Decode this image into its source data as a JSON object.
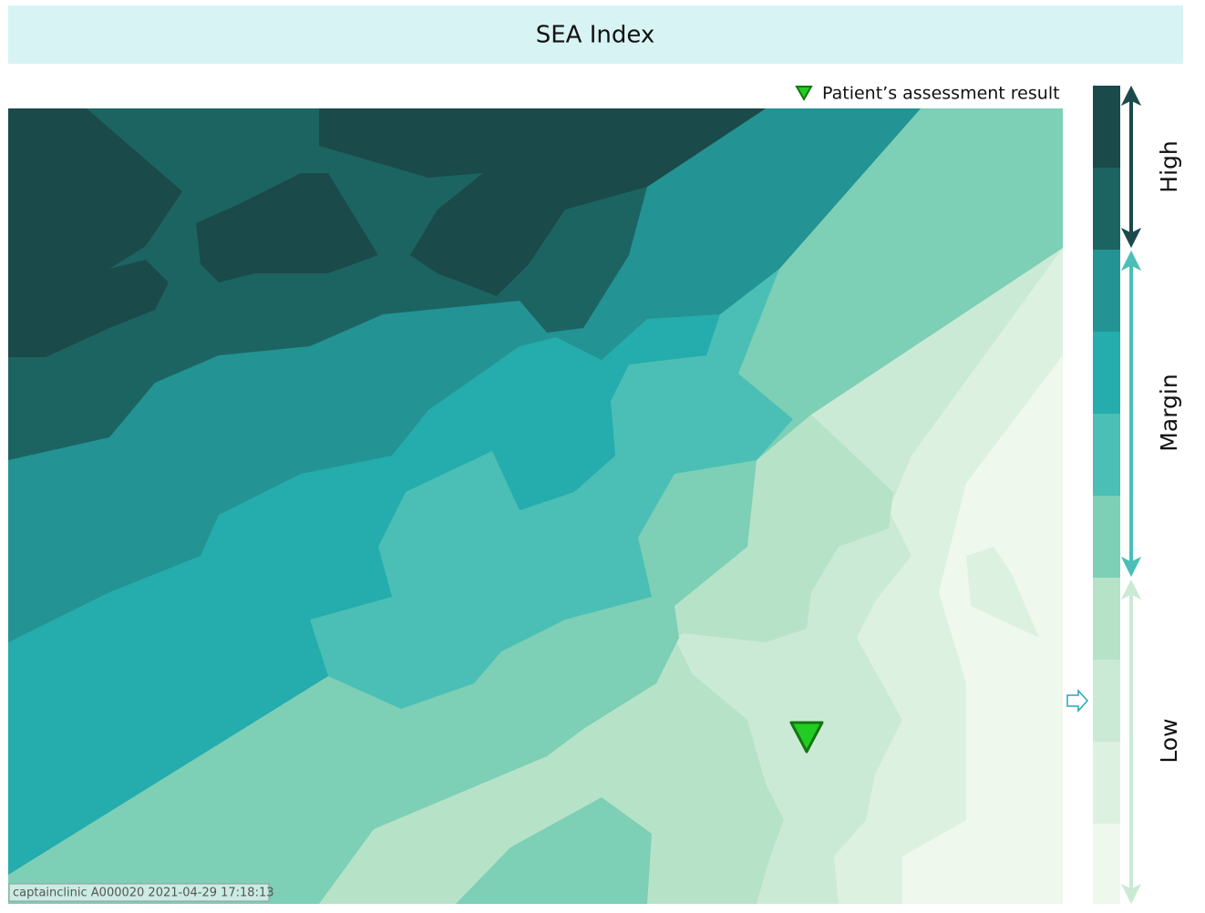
{
  "header": {
    "title": "SEA Index"
  },
  "legend": {
    "label": "Patient’s assessment result"
  },
  "scale": {
    "labels": [
      "High",
      "Margin",
      "Low"
    ]
  },
  "footer": {
    "stamp": "captainclinic A000020 2021-04-29 17:18:13"
  }
}
